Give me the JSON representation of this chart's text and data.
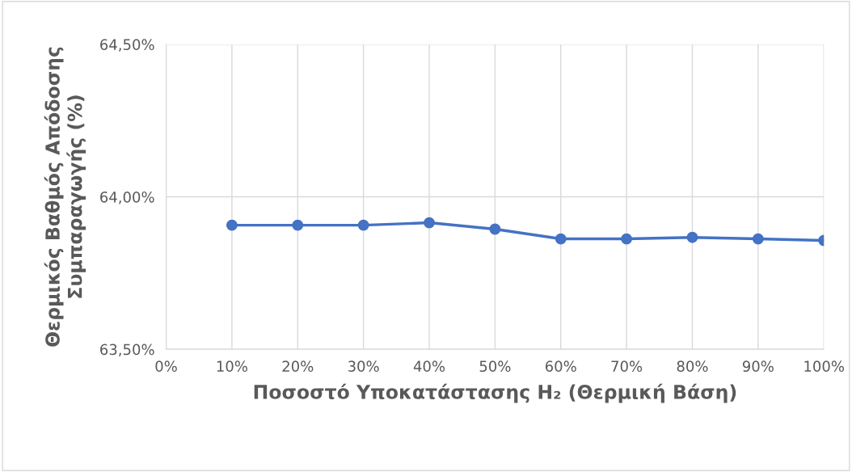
{
  "chart_data": {
    "type": "line",
    "xlabel": "Ποσοστό Υποκατάστασης H₂ (Θερμική Βάση)",
    "ylabel": "Θερμικός Βαθμός Απόδοσης\nΣυμπαραγωγής (%)",
    "x": [
      10,
      20,
      30,
      40,
      50,
      60,
      70,
      80,
      90,
      100
    ],
    "series": [
      {
        "color": "#4472c4",
        "values": [
          63.907,
          63.907,
          63.907,
          63.915,
          63.894,
          63.862,
          63.862,
          63.867,
          63.862,
          63.857
        ]
      }
    ],
    "xlim": [
      0,
      100
    ],
    "xticks": [
      {
        "value": 0,
        "label": "0%"
      },
      {
        "value": 10,
        "label": "10%"
      },
      {
        "value": 20,
        "label": "20%"
      },
      {
        "value": 30,
        "label": "30%"
      },
      {
        "value": 40,
        "label": "40%"
      },
      {
        "value": 50,
        "label": "50%"
      },
      {
        "value": 60,
        "label": "60%"
      },
      {
        "value": 70,
        "label": "70%"
      },
      {
        "value": 80,
        "label": "80%"
      },
      {
        "value": 90,
        "label": "90%"
      },
      {
        "value": 100,
        "label": "100%"
      }
    ],
    "ylim": [
      63.5,
      64.5
    ],
    "yticks": [
      {
        "value": 63.5,
        "label": "63,50%"
      },
      {
        "value": 64.0,
        "label": "64,00%"
      },
      {
        "value": 64.5,
        "label": "64,50%"
      }
    ],
    "grid": true,
    "marker": "circle",
    "line_style": "solid",
    "legend": false
  }
}
